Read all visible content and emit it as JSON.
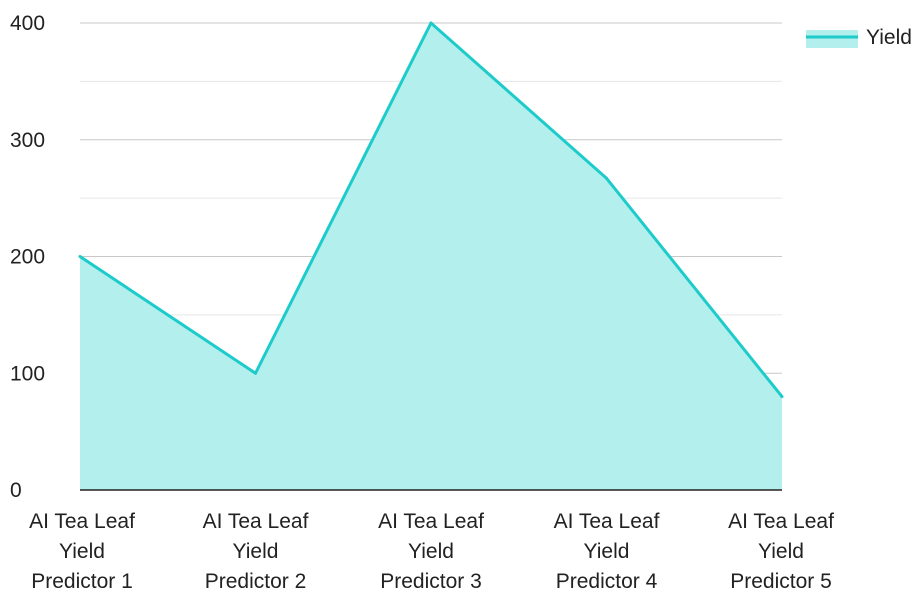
{
  "chart_data": {
    "type": "area",
    "categories": [
      [
        "AI Tea Leaf",
        "Yield",
        "Predictor 1"
      ],
      [
        "AI Tea Leaf",
        "Yield",
        "Predictor 2"
      ],
      [
        "AI Tea Leaf",
        "Yield",
        "Predictor 3"
      ],
      [
        "AI Tea Leaf",
        "Yield",
        "Predictor 4"
      ],
      [
        "AI Tea Leaf",
        "Yield",
        "Predictor 5"
      ]
    ],
    "series": [
      {
        "name": "Yield",
        "values": [
          200,
          100,
          400,
          267,
          80
        ],
        "line_color": "#1ecbcb",
        "fill_color": "#b2efed"
      }
    ],
    "y_ticks": [
      0,
      100,
      200,
      300,
      400
    ],
    "ylim": [
      0,
      400
    ],
    "grid": true,
    "legend": "top-right",
    "title": "",
    "xlabel": "",
    "ylabel": ""
  }
}
